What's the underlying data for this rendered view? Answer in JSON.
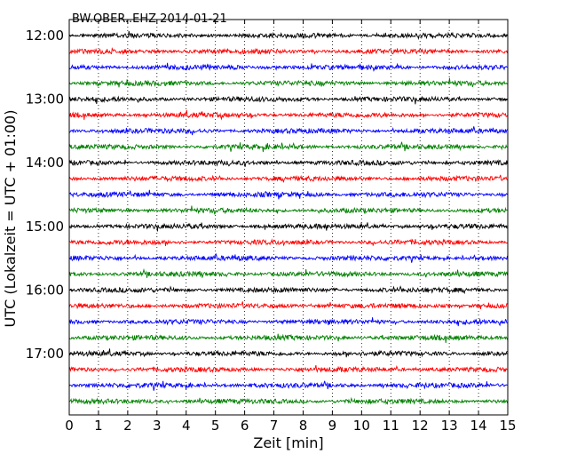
{
  "chart_data": {
    "type": "line",
    "title": "BW.OBER..EHZ 2014-01-21",
    "xlabel": "Zeit  [min]",
    "ylabel": "UTC (Lokalzeit = UTC + 01:00)",
    "xlim": [
      0,
      15
    ],
    "x_ticks": [
      "0",
      "1",
      "2",
      "3",
      "4",
      "5",
      "6",
      "7",
      "8",
      "9",
      "10",
      "11",
      "12",
      "13",
      "14",
      "15"
    ],
    "y_ticks": [
      "12:00",
      "13:00",
      "14:00",
      "15:00",
      "16:00",
      "17:00"
    ],
    "trace_interval_minutes": 15,
    "first_trace": "12:00",
    "trace_colors": [
      "#000000",
      "#ff0000",
      "#0000ff",
      "#008000"
    ],
    "grid": "vertical dotted",
    "traces": [
      {
        "start": "12:00"
      },
      {
        "start": "12:15"
      },
      {
        "start": "12:30"
      },
      {
        "start": "12:45"
      },
      {
        "start": "13:00"
      },
      {
        "start": "13:15"
      },
      {
        "start": "13:30"
      },
      {
        "start": "13:45"
      },
      {
        "start": "14:00"
      },
      {
        "start": "14:15"
      },
      {
        "start": "14:30"
      },
      {
        "start": "14:45"
      },
      {
        "start": "15:00"
      },
      {
        "start": "15:15"
      },
      {
        "start": "15:30"
      },
      {
        "start": "15:45"
      },
      {
        "start": "16:00"
      },
      {
        "start": "16:15"
      },
      {
        "start": "16:30"
      },
      {
        "start": "16:45"
      },
      {
        "start": "17:00"
      },
      {
        "start": "17:15"
      },
      {
        "start": "17:30"
      },
      {
        "start": "17:45"
      }
    ]
  }
}
